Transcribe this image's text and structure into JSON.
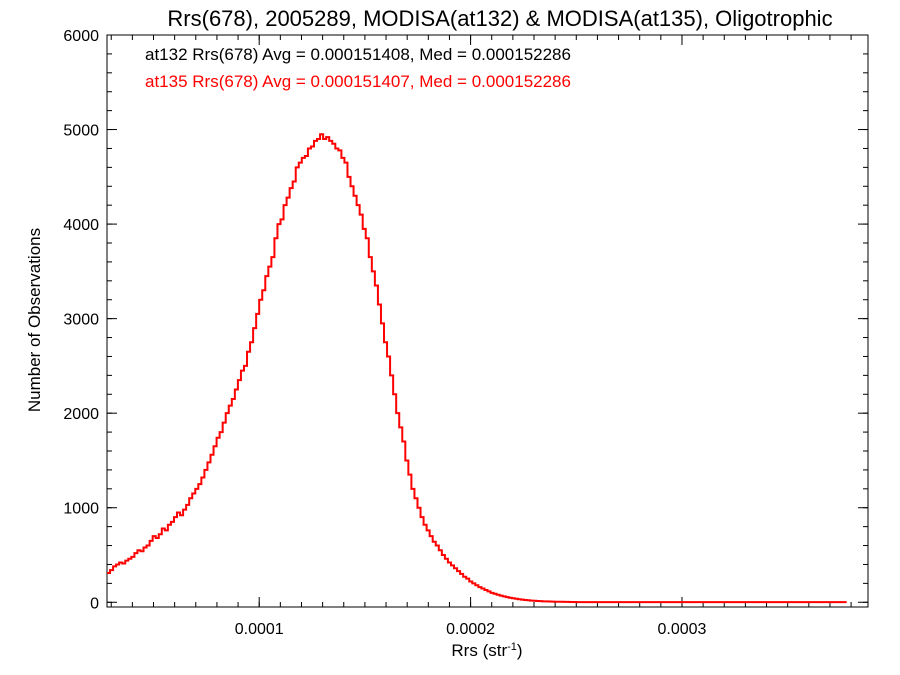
{
  "chart_data": {
    "type": "step",
    "title": "Rrs(678), 2005289, MODISA(at132) & MODISA(at135), Oligotrophic",
    "xlabel": "Rrs (str",
    "xlabel_sup": "-1",
    "xlabel_tail": ")",
    "ylabel": "Number of Observations",
    "xlim": [
      2.8e-05,
      0.000388
    ],
    "ylim": [
      -50,
      6000
    ],
    "x_ticks": [
      {
        "value": 0.0001,
        "label": "0.0001"
      },
      {
        "value": 0.0002,
        "label": "0.0002"
      },
      {
        "value": 0.0003,
        "label": "0.0003"
      }
    ],
    "y_ticks": [
      {
        "value": 0,
        "label": "0"
      },
      {
        "value": 1000,
        "label": "1000"
      },
      {
        "value": 2000,
        "label": "2000"
      },
      {
        "value": 3000,
        "label": "3000"
      },
      {
        "value": 4000,
        "label": "4000"
      },
      {
        "value": 5000,
        "label": "5000"
      },
      {
        "value": 6000,
        "label": "6000"
      }
    ],
    "grid": false,
    "annotations": [
      {
        "text": "at132 Rrs(678) Avg = 0.000151408, Med = 0.000152286",
        "color": "#000000"
      },
      {
        "text": "at135 Rrs(678) Avg = 0.000151407, Med = 0.000152286",
        "color": "#ff0000"
      }
    ],
    "series": [
      {
        "color": "#ff0000",
        "bin_start": 2.8e-05,
        "bin_width": 1.44e-06,
        "values": [
          310,
          340,
          380,
          400,
          420,
          410,
          440,
          460,
          480,
          520,
          550,
          540,
          580,
          600,
          650,
          700,
          680,
          720,
          780,
          760,
          820,
          850,
          900,
          950,
          920,
          980,
          1030,
          1100,
          1150,
          1200,
          1250,
          1320,
          1400,
          1480,
          1560,
          1650,
          1740,
          1800,
          1900,
          2000,
          2080,
          2150,
          2250,
          2350,
          2450,
          2500,
          2650,
          2750,
          2900,
          3050,
          3200,
          3300,
          3450,
          3550,
          3650,
          3850,
          4000,
          4050,
          4200,
          4280,
          4380,
          4450,
          4600,
          4650,
          4700,
          4720,
          4800,
          4820,
          4880,
          4900,
          4950,
          4900,
          4920,
          4880,
          4850,
          4800,
          4780,
          4700,
          4650,
          4500,
          4400,
          4300,
          4200,
          4100,
          3950,
          3850,
          3650,
          3500,
          3350,
          3150,
          2950,
          2750,
          2600,
          2400,
          2200,
          2000,
          1850,
          1700,
          1500,
          1350,
          1200,
          1100,
          1000,
          900,
          820,
          760,
          700,
          640,
          600,
          550,
          500,
          460,
          420,
          390,
          360,
          330,
          300,
          270,
          250,
          220,
          200,
          180,
          160,
          145,
          130,
          115,
          100,
          90,
          80,
          70,
          62,
          55,
          48,
          42,
          37,
          32,
          28,
          24,
          21,
          18,
          16,
          14,
          12,
          10,
          9,
          8,
          7,
          6,
          5,
          5,
          4,
          4,
          3,
          3,
          2,
          2,
          2,
          2,
          2,
          2,
          2,
          2,
          2,
          2,
          2,
          2,
          2,
          2,
          2,
          2,
          2,
          2,
          2,
          2,
          2,
          2,
          2,
          2,
          2,
          2,
          2,
          2,
          2,
          2,
          2,
          2,
          2,
          2,
          2,
          2,
          2,
          2,
          2,
          2,
          2,
          2,
          2,
          2,
          2,
          2,
          2,
          2,
          2,
          2,
          2,
          2,
          2,
          2,
          2,
          2,
          2,
          2,
          2,
          2,
          2,
          2,
          2,
          2,
          2,
          2,
          2,
          2,
          2,
          2,
          2,
          2,
          2,
          2,
          2,
          2,
          2,
          2,
          2,
          2,
          2,
          2,
          2,
          2,
          2,
          2,
          2,
          2,
          2
        ]
      }
    ]
  }
}
